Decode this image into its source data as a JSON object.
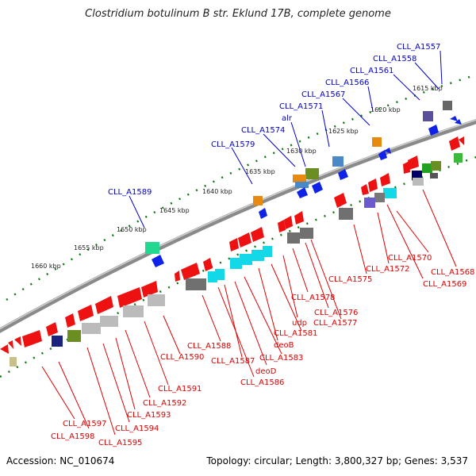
{
  "title": "Clostridium botulinum B str. Eklund 17B, complete genome",
  "accession": "Accession: NC_010674",
  "summary": "Topology: circular; Length: 3,800,327 bp; Genes: 3,537",
  "colors": {
    "top_strand_label": "#0000cc",
    "bottom_strand_label": "#dd0000",
    "backbone": "#808080",
    "tick_dots": "#117711"
  },
  "scale_labels": [
    "1615 kbp",
    "1620 kbp",
    "1625 kbp",
    "1630 kbp",
    "1635 kbp",
    "1640 kbp",
    "1645 kbp",
    "1650 kbp",
    "1655 kbp",
    "1660 kbp"
  ],
  "top_labels": [
    "CLL_A1557",
    "CLL_A1558",
    "CLL_A1561",
    "CLL_A1566",
    "CLL_A1567",
    "CLL_A1571",
    "alr",
    "CLL_A1574",
    "CLL_A1579",
    "CLL_A1589"
  ],
  "bottom_labels": [
    "CLL_A1570",
    "CLL_A1568",
    "CLL_A1572",
    "CLL_A1569",
    "CLL_A1575",
    "CLL_A1578",
    "CLL_A1576",
    "CLL_A1577",
    "udp",
    "CLL_A1581",
    "deoB",
    "CLL_A1588",
    "CLL_A1583",
    "CLL_A1590",
    "CLL_A1587",
    "deoD",
    "CLL_A1586",
    "CLL_A1591",
    "CLL_A1592",
    "CLL_A1593",
    "CLL_A1594",
    "CLL_A1597",
    "CLL_A1598",
    "CLL_A1595"
  ]
}
